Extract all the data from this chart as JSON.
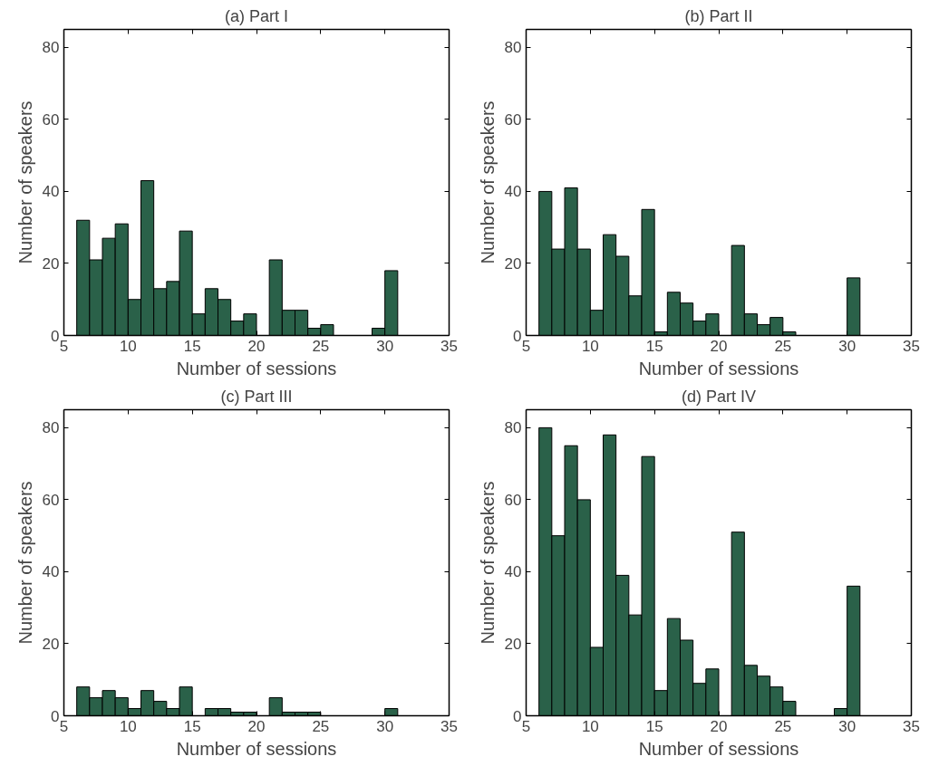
{
  "chart_data": [
    {
      "type": "histogram",
      "title": "(a) Part I",
      "xlabel": "Number of sessions",
      "ylabel": "Number of speakers",
      "color": "#2a6149",
      "bins": [
        6,
        7,
        8,
        9,
        10,
        11,
        12,
        13,
        14,
        15,
        16,
        17,
        18,
        19,
        20,
        21,
        22,
        23,
        24,
        25,
        26,
        27,
        28,
        29,
        30,
        31
      ],
      "values": [
        32,
        21,
        27,
        31,
        10,
        43,
        13,
        15,
        29,
        6,
        13,
        10,
        4,
        6,
        0,
        21,
        7,
        7,
        2,
        3,
        0,
        0,
        0,
        2,
        18
      ],
      "xlim": [
        5,
        35
      ],
      "ylim": [
        0,
        85
      ],
      "xticks": [
        5,
        10,
        15,
        20,
        25,
        30,
        35
      ],
      "yticks": [
        0,
        20,
        40,
        60,
        80
      ],
      "grid": false
    },
    {
      "type": "histogram",
      "title": "(b) Part II",
      "xlabel": "Number of sessions",
      "ylabel": "Number of speakers",
      "color": "#2a6149",
      "bins": [
        6,
        7,
        8,
        9,
        10,
        11,
        12,
        13,
        14,
        15,
        16,
        17,
        18,
        19,
        20,
        21,
        22,
        23,
        24,
        25,
        26,
        27,
        28,
        29,
        30,
        31
      ],
      "values": [
        40,
        24,
        41,
        24,
        7,
        28,
        22,
        11,
        35,
        1,
        12,
        9,
        4,
        6,
        0,
        25,
        6,
        3,
        5,
        1,
        0,
        0,
        0,
        0,
        16
      ],
      "xlim": [
        5,
        35
      ],
      "ylim": [
        0,
        85
      ],
      "xticks": [
        5,
        10,
        15,
        20,
        25,
        30,
        35
      ],
      "yticks": [
        0,
        20,
        40,
        60,
        80
      ],
      "grid": false
    },
    {
      "type": "histogram",
      "title": "(c) Part III",
      "xlabel": "Number of sessions",
      "ylabel": "Number of speakers",
      "color": "#2a6149",
      "bins": [
        6,
        7,
        8,
        9,
        10,
        11,
        12,
        13,
        14,
        15,
        16,
        17,
        18,
        19,
        20,
        21,
        22,
        23,
        24,
        25,
        26,
        27,
        28,
        29,
        30,
        31
      ],
      "values": [
        8,
        5,
        7,
        5,
        2,
        7,
        4,
        2,
        8,
        0,
        2,
        2,
        1,
        1,
        0,
        5,
        1,
        1,
        1,
        0,
        0,
        0,
        0,
        0,
        2
      ],
      "xlim": [
        5,
        35
      ],
      "ylim": [
        0,
        85
      ],
      "xticks": [
        5,
        10,
        15,
        20,
        25,
        30,
        35
      ],
      "yticks": [
        0,
        20,
        40,
        60,
        80
      ],
      "grid": false
    },
    {
      "type": "histogram",
      "title": "(d) Part IV",
      "xlabel": "Number of sessions",
      "ylabel": "Number of speakers",
      "color": "#2a6149",
      "bins": [
        6,
        7,
        8,
        9,
        10,
        11,
        12,
        13,
        14,
        15,
        16,
        17,
        18,
        19,
        20,
        21,
        22,
        23,
        24,
        25,
        26,
        27,
        28,
        29,
        30,
        31
      ],
      "values": [
        80,
        50,
        75,
        60,
        19,
        78,
        39,
        28,
        72,
        7,
        27,
        21,
        9,
        13,
        0,
        51,
        14,
        11,
        8,
        4,
        0,
        0,
        0,
        2,
        36
      ],
      "xlim": [
        5,
        35
      ],
      "ylim": [
        0,
        85
      ],
      "xticks": [
        5,
        10,
        15,
        20,
        25,
        30,
        35
      ],
      "yticks": [
        0,
        20,
        40,
        60,
        80
      ],
      "grid": false
    }
  ]
}
